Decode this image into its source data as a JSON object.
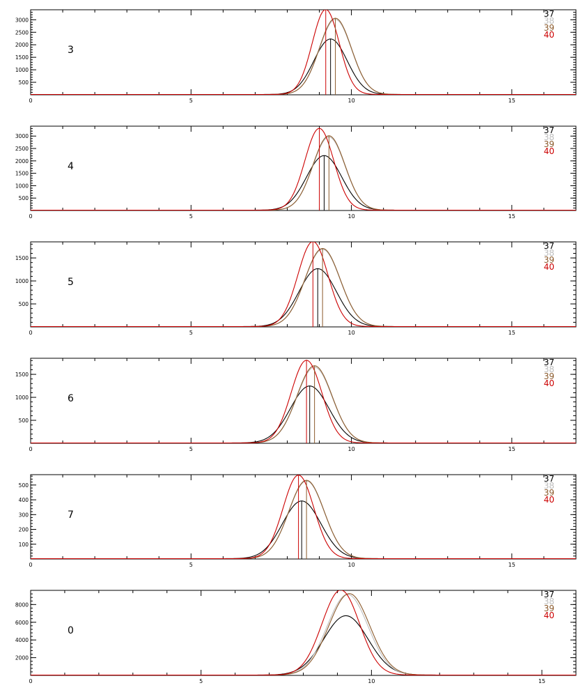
{
  "colors": {
    "axis": "#000000",
    "series": [
      "#000000",
      "#bdbdbd",
      "#8b5a2b",
      "#cc0000"
    ]
  },
  "chart_data": [
    {
      "type": "line",
      "panel_label": "3",
      "xlim": [
        0,
        17
      ],
      "ylim": [
        0,
        3400
      ],
      "xticks": [
        0,
        5,
        10,
        15
      ],
      "yticks": [
        500,
        1000,
        1500,
        2000,
        2500,
        3000
      ],
      "legend": [
        "37",
        "38",
        "39",
        "40"
      ],
      "series": [
        {
          "name": "37",
          "color": "#000000",
          "mean": 9.35,
          "sigma": 0.52,
          "peak": 2220
        },
        {
          "name": "38",
          "color": "#bdbdbd",
          "mean": 9.5,
          "sigma": 0.5,
          "peak": 3000
        },
        {
          "name": "39",
          "color": "#8b5a2b",
          "mean": 9.5,
          "sigma": 0.5,
          "peak": 3050
        },
        {
          "name": "40",
          "color": "#cc0000",
          "mean": 9.2,
          "sigma": 0.42,
          "peak": 3400
        }
      ],
      "vlines": [
        {
          "x": 9.35,
          "color": "#000000"
        },
        {
          "x": 9.2,
          "color": "#cc0000"
        },
        {
          "x": 9.5,
          "color": "#8b5a2b"
        }
      ]
    },
    {
      "type": "line",
      "panel_label": "4",
      "xlim": [
        0,
        17
      ],
      "ylim": [
        0,
        3400
      ],
      "xticks": [
        0,
        5,
        10,
        15
      ],
      "yticks": [
        500,
        1000,
        1500,
        2000,
        2500,
        3000
      ],
      "legend": [
        "37",
        "38",
        "39",
        "40"
      ],
      "series": [
        {
          "name": "37",
          "color": "#000000",
          "mean": 9.15,
          "sigma": 0.55,
          "peak": 2200
        },
        {
          "name": "38",
          "color": "#bdbdbd",
          "mean": 9.3,
          "sigma": 0.5,
          "peak": 2950
        },
        {
          "name": "39",
          "color": "#8b5a2b",
          "mean": 9.3,
          "sigma": 0.5,
          "peak": 3000
        },
        {
          "name": "40",
          "color": "#cc0000",
          "mean": 9.0,
          "sigma": 0.45,
          "peak": 3300
        }
      ],
      "vlines": [
        {
          "x": 9.15,
          "color": "#000000"
        },
        {
          "x": 9.0,
          "color": "#cc0000"
        },
        {
          "x": 9.3,
          "color": "#8b5a2b"
        }
      ]
    },
    {
      "type": "line",
      "panel_label": "5",
      "xlim": [
        0,
        17
      ],
      "ylim": [
        0,
        1850
      ],
      "xticks": [
        0,
        5,
        10,
        15
      ],
      "yticks": [
        500,
        1000,
        1500
      ],
      "legend": [
        "37",
        "38",
        "39",
        "40"
      ],
      "series": [
        {
          "name": "37",
          "color": "#000000",
          "mean": 8.95,
          "sigma": 0.58,
          "peak": 1260
        },
        {
          "name": "38",
          "color": "#bdbdbd",
          "mean": 9.1,
          "sigma": 0.55,
          "peak": 1680
        },
        {
          "name": "39",
          "color": "#8b5a2b",
          "mean": 9.1,
          "sigma": 0.55,
          "peak": 1700
        },
        {
          "name": "40",
          "color": "#cc0000",
          "mean": 8.8,
          "sigma": 0.47,
          "peak": 1850
        }
      ],
      "vlines": [
        {
          "x": 8.95,
          "color": "#000000"
        },
        {
          "x": 8.8,
          "color": "#cc0000"
        },
        {
          "x": 9.1,
          "color": "#8b5a2b"
        }
      ]
    },
    {
      "type": "line",
      "panel_label": "6",
      "xlim": [
        0,
        17
      ],
      "ylim": [
        0,
        1850
      ],
      "xticks": [
        0,
        5,
        10,
        15
      ],
      "yticks": [
        500,
        1000,
        1500
      ],
      "legend": [
        "37",
        "38",
        "39",
        "40"
      ],
      "series": [
        {
          "name": "37",
          "color": "#000000",
          "mean": 8.7,
          "sigma": 0.6,
          "peak": 1240
        },
        {
          "name": "38",
          "color": "#bdbdbd",
          "mean": 8.85,
          "sigma": 0.55,
          "peak": 1650
        },
        {
          "name": "39",
          "color": "#8b5a2b",
          "mean": 8.85,
          "sigma": 0.55,
          "peak": 1680
        },
        {
          "name": "40",
          "color": "#cc0000",
          "mean": 8.6,
          "sigma": 0.48,
          "peak": 1800
        }
      ],
      "vlines": [
        {
          "x": 8.7,
          "color": "#000000"
        },
        {
          "x": 8.6,
          "color": "#cc0000"
        },
        {
          "x": 8.85,
          "color": "#8b5a2b"
        }
      ]
    },
    {
      "type": "line",
      "panel_label": "7",
      "xlim": [
        0,
        17
      ],
      "ylim": [
        0,
        570
      ],
      "xticks": [
        0,
        5,
        10,
        15
      ],
      "yticks": [
        100,
        200,
        300,
        400,
        500
      ],
      "legend": [
        "37",
        "38",
        "39",
        "40"
      ],
      "series": [
        {
          "name": "37",
          "color": "#000000",
          "mean": 8.45,
          "sigma": 0.6,
          "peak": 390
        },
        {
          "name": "38",
          "color": "#bdbdbd",
          "mean": 8.6,
          "sigma": 0.55,
          "peak": 525
        },
        {
          "name": "39",
          "color": "#8b5a2b",
          "mean": 8.6,
          "sigma": 0.55,
          "peak": 530
        },
        {
          "name": "40",
          "color": "#cc0000",
          "mean": 8.35,
          "sigma": 0.48,
          "peak": 565
        }
      ],
      "vlines": [
        {
          "x": 8.45,
          "color": "#000000"
        },
        {
          "x": 8.35,
          "color": "#cc0000"
        },
        {
          "x": 8.6,
          "color": "#8b5a2b"
        }
      ]
    },
    {
      "type": "line",
      "panel_label": "0",
      "xlim": [
        0,
        16
      ],
      "ylim": [
        0,
        9600
      ],
      "xticks": [
        0,
        5,
        10,
        15
      ],
      "yticks": [
        2000,
        4000,
        6000,
        8000
      ],
      "legend": [
        "37",
        "38",
        "39",
        "40"
      ],
      "series": [
        {
          "name": "37",
          "color": "#000000",
          "mean": 9.25,
          "sigma": 0.65,
          "peak": 6700
        },
        {
          "name": "38",
          "color": "#bdbdbd",
          "mean": 9.3,
          "sigma": 0.6,
          "peak": 9100
        },
        {
          "name": "39",
          "color": "#8b5a2b",
          "mean": 9.35,
          "sigma": 0.6,
          "peak": 9200
        },
        {
          "name": "40",
          "color": "#cc0000",
          "mean": 9.1,
          "sigma": 0.55,
          "peak": 9600
        }
      ],
      "vlines": []
    }
  ]
}
